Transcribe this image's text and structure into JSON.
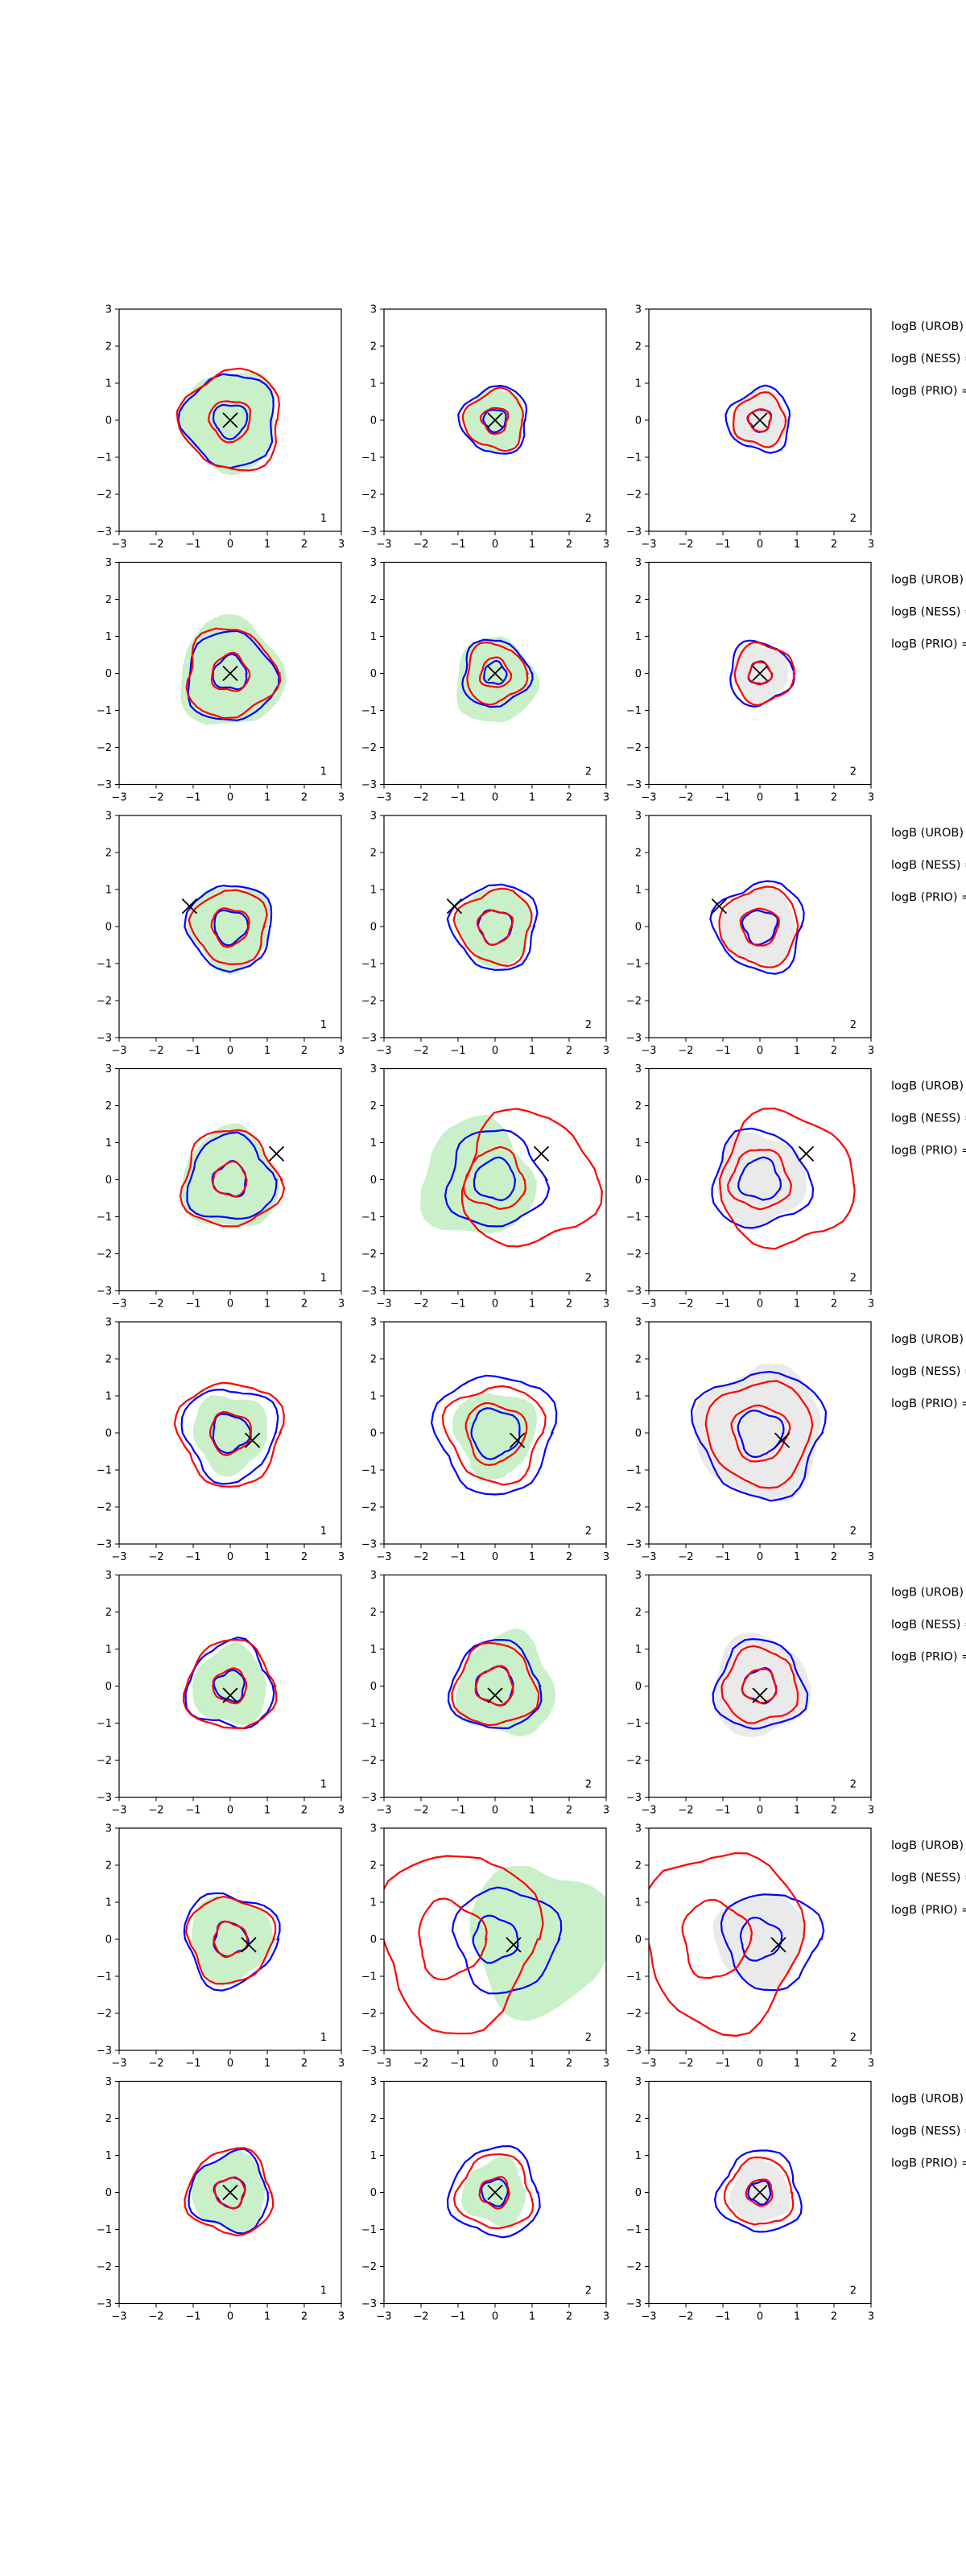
{
  "figure": {
    "labels": {
      "urob": "logB (UROB)",
      "ness": "logB (NESS) =",
      "prio": "logB (PRIO) ="
    }
  },
  "chart_data": {
    "type": "contour",
    "layout": {
      "rows": 8,
      "cols": 3
    },
    "xlim": [
      -3,
      3
    ],
    "ylim": [
      -3,
      3
    ],
    "xticks": [
      -3,
      -2,
      -1,
      0,
      1,
      2,
      3
    ],
    "yticks": [
      -3,
      -2,
      -1,
      0,
      1,
      2,
      3
    ],
    "grid": false,
    "colors": {
      "blue": "#0000ff",
      "red": "#ff0000",
      "fill_green": "#c9f0c9",
      "fill_grey": "#eaeaea"
    },
    "panel_labels": [
      "1",
      "2",
      "2"
    ],
    "markers": [
      {
        "x": 0,
        "y": 0
      },
      {
        "x": 0,
        "y": 0
      },
      {
        "x": -1.1,
        "y": 0.55
      },
      {
        "x": 1.25,
        "y": 0.7
      },
      {
        "x": 0.6,
        "y": -0.2
      },
      {
        "x": 0.0,
        "y": -0.25
      },
      {
        "x": 0.5,
        "y": -0.15
      },
      {
        "x": 0,
        "y": 0
      }
    ],
    "contours": [
      [
        {
          "fill": [
            0,
            0,
            1.3
          ],
          "blue": [
            [
              0,
              0,
              0.45
            ],
            [
              0,
              0,
              1.25
            ]
          ],
          "red": [
            [
              0,
              0,
              0.55
            ],
            [
              0.05,
              0,
              1.35
            ]
          ]
        },
        {
          "fill": [
            0,
            0,
            0.8
          ],
          "blue": [
            [
              0,
              0,
              0.3
            ],
            [
              0,
              0,
              0.9
            ]
          ],
          "red": [
            [
              0,
              0,
              0.35
            ],
            [
              0,
              0,
              0.8
            ]
          ]
        },
        {
          "fill_grey": [
            0,
            0,
            0.75
          ],
          "blue": [
            [
              0,
              0,
              0.3
            ],
            [
              0,
              0,
              0.85
            ]
          ],
          "red": [
            [
              0,
              0,
              0.3
            ],
            [
              0,
              0,
              0.7
            ]
          ]
        }
      ],
      [
        {
          "fill": [
            0,
            0,
            1.4
          ],
          "blue": [
            [
              0,
              0,
              0.45
            ],
            [
              0,
              -0.1,
              1.2
            ]
          ],
          "red": [
            [
              0,
              0,
              0.5
            ],
            [
              0,
              0,
              1.2
            ]
          ]
        },
        {
          "fill": [
            0,
            -0.2,
            1.1
          ],
          "blue": [
            [
              0,
              0,
              0.3
            ],
            [
              0,
              0,
              0.9
            ]
          ],
          "red": [
            [
              0,
              0,
              0.4
            ],
            [
              0,
              0,
              0.8
            ]
          ]
        },
        {
          "fill_grey": [
            0,
            0,
            0.75
          ],
          "blue": [
            [
              0,
              0,
              0.3
            ],
            [
              0,
              0,
              0.85
            ]
          ],
          "red": [
            [
              0,
              0,
              0.3
            ],
            [
              0.1,
              0,
              0.8
            ]
          ]
        }
      ],
      [
        {
          "fill": [
            0,
            0,
            1.1
          ],
          "blue": [
            [
              0,
              0,
              0.45
            ],
            [
              0,
              0,
              1.15
            ]
          ],
          "red": [
            [
              0,
              0,
              0.5
            ],
            [
              0,
              0,
              1.0
            ]
          ]
        },
        {
          "fill": [
            0,
            0,
            1.0
          ],
          "blue": [
            [
              0,
              0,
              0.45
            ],
            [
              0,
              0,
              1.15
            ]
          ],
          "red": [
            [
              0,
              0,
              0.45
            ],
            [
              0,
              0,
              1.0
            ]
          ]
        },
        {
          "fill_grey": [
            0,
            0,
            1.0
          ],
          "blue": [
            [
              0,
              0,
              0.45
            ],
            [
              0,
              0,
              1.2
            ]
          ],
          "red": [
            [
              0,
              0,
              0.5
            ],
            [
              0,
              0,
              1.05
            ]
          ]
        }
      ],
      [
        {
          "fill": [
            0,
            0,
            1.3
          ],
          "blue": [
            [
              0,
              0,
              0.45
            ],
            [
              0,
              0,
              1.15
            ]
          ],
          "red": [
            [
              0,
              0,
              0.45
            ],
            [
              0,
              0,
              1.3
            ]
          ]
        },
        {
          "fill": [
            -0.5,
            0,
            1.5
          ],
          "blue": [
            [
              0,
              0,
              0.55
            ],
            [
              0,
              0,
              1.3
            ]
          ],
          "red": [
            [
              0,
              0,
              0.8
            ],
            [
              0.9,
              0,
              1.8
            ]
          ]
        },
        {
          "fill_grey": [
            0,
            0,
            1.2
          ],
          "blue": [
            [
              0,
              0,
              0.55
            ],
            [
              0,
              0,
              1.3
            ]
          ],
          "red": [
            [
              0,
              0,
              0.8
            ],
            [
              0.7,
              0,
              1.8
            ]
          ]
        }
      ],
      [
        {
          "fill": [
            0,
            0,
            1.0
          ],
          "blue": [
            [
              0,
              0,
              0.5
            ],
            [
              0,
              0,
              1.25
            ]
          ],
          "red": [
            [
              0,
              0,
              0.55
            ],
            [
              0,
              0,
              1.4
            ]
          ]
        },
        {
          "fill": [
            0,
            0,
            1.1
          ],
          "blue": [
            [
              0,
              0,
              0.65
            ],
            [
              0,
              0,
              1.6
            ]
          ],
          "red": [
            [
              0,
              0,
              0.8
            ],
            [
              0,
              0,
              1.3
            ]
          ]
        },
        {
          "fill_grey": [
            0,
            0,
            1.7
          ],
          "blue": [
            [
              0,
              0,
              0.6
            ],
            [
              0,
              0,
              1.7
            ]
          ],
          "red": [
            [
              0,
              0,
              0.75
            ],
            [
              0,
              0,
              1.4
            ]
          ]
        }
      ],
      [
        {
          "fill": [
            0,
            0,
            1.0
          ],
          "blue": [
            [
              0,
              0,
              0.4
            ],
            [
              0,
              0,
              1.15
            ]
          ],
          "red": [
            [
              0,
              0,
              0.45
            ],
            [
              0,
              0,
              1.2
            ]
          ]
        },
        {
          "fill": [
            0.3,
            0,
            1.3
          ],
          "blue": [
            [
              0,
              0,
              0.5
            ],
            [
              0,
              0,
              1.2
            ]
          ],
          "red": [
            [
              0,
              0,
              0.5
            ],
            [
              0,
              0,
              1.1
            ]
          ]
        },
        {
          "fill_grey": [
            0,
            0,
            1.3
          ],
          "blue": [
            [
              0,
              0,
              0.45
            ],
            [
              0,
              0,
              1.2
            ]
          ],
          "red": [
            [
              0,
              0,
              0.45
            ],
            [
              0,
              0,
              1.0
            ]
          ]
        }
      ],
      [
        {
          "fill": [
            0,
            0,
            1.1
          ],
          "blue": [
            [
              0,
              0,
              0.45
            ],
            [
              0,
              0,
              1.25
            ]
          ],
          "red": [
            [
              0,
              0,
              0.45
            ],
            [
              0,
              0,
              1.15
            ]
          ]
        },
        {
          "fill": [
            1.2,
            0,
            1.9
          ],
          "blue": [
            [
              0,
              0,
              0.6
            ],
            [
              0.3,
              0,
              1.4
            ]
          ],
          "red": [
            [
              -1.2,
              0,
              0.9
            ],
            [
              -1.0,
              0,
              2.1
            ]
          ]
        },
        {
          "fill_grey": [
            0,
            0,
            1.2
          ],
          "blue": [
            [
              0,
              0,
              0.55
            ],
            [
              0.3,
              0,
              1.3
            ]
          ],
          "red": [
            [
              -1.2,
              0,
              0.9
            ],
            [
              -1.0,
              0,
              2.1
            ]
          ]
        }
      ],
      [
        {
          "fill": [
            0,
            0,
            1.0
          ],
          "blue": [
            [
              0,
              0,
              0.4
            ],
            [
              0,
              0,
              1.05
            ]
          ],
          "red": [
            [
              0,
              0,
              0.4
            ],
            [
              0,
              0,
              1.15
            ]
          ]
        },
        {
          "fill": [
            0,
            0,
            0.85
          ],
          "blue": [
            [
              0,
              0,
              0.35
            ],
            [
              0,
              0,
              1.2
            ]
          ],
          "red": [
            [
              0,
              0,
              0.4
            ],
            [
              0,
              0,
              1.0
            ]
          ]
        },
        {
          "fill_grey": [
            0,
            0,
            0.8
          ],
          "blue": [
            [
              0,
              0,
              0.3
            ],
            [
              0,
              0,
              1.1
            ]
          ],
          "red": [
            [
              0,
              0,
              0.35
            ],
            [
              0,
              0,
              0.9
            ]
          ]
        }
      ]
    ]
  }
}
